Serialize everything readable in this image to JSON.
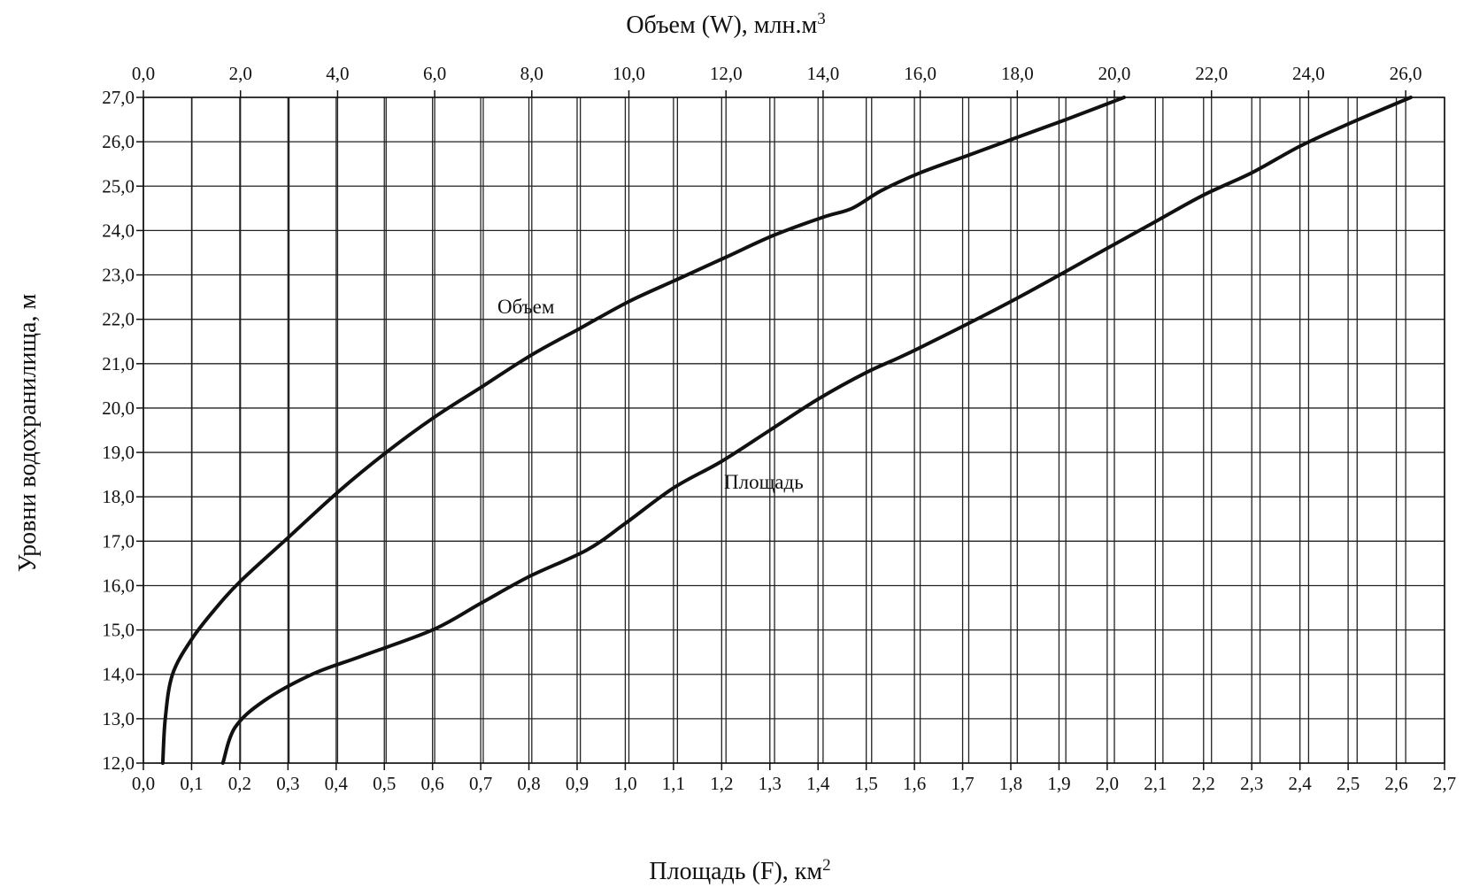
{
  "chart_data": {
    "type": "line",
    "title": "",
    "top_axis": {
      "label": "Объем (W), млн.м",
      "label_sup": "3",
      "range": [
        0,
        26.8
      ],
      "tick_values": [
        0,
        2,
        4,
        6,
        8,
        10,
        12,
        14,
        16,
        18,
        20,
        22,
        24,
        26
      ],
      "tick_labels": [
        "0,0",
        "2,0",
        "4,0",
        "6,0",
        "8,0",
        "10,0",
        "12,0",
        "14,0",
        "16,0",
        "18,0",
        "20,0",
        "22,0",
        "24,0",
        "26,0"
      ],
      "minor_step": 1
    },
    "bottom_axis": {
      "label": "Площадь (F), км",
      "label_sup": "2",
      "range": [
        0,
        2.7
      ],
      "tick_values": [
        0,
        0.1,
        0.2,
        0.3,
        0.4,
        0.5,
        0.6,
        0.7,
        0.8,
        0.9,
        1.0,
        1.1,
        1.2,
        1.3,
        1.4,
        1.5,
        1.6,
        1.7,
        1.8,
        1.9,
        2.0,
        2.1,
        2.2,
        2.3,
        2.4,
        2.5,
        2.6,
        2.7
      ],
      "tick_labels": [
        "0,0",
        "0,1",
        "0,2",
        "0,3",
        "0,4",
        "0,5",
        "0,6",
        "0,7",
        "0,8",
        "0,9",
        "1,0",
        "1,1",
        "1,2",
        "1,3",
        "1,4",
        "1,5",
        "1,6",
        "1,7",
        "1,8",
        "1,9",
        "2,0",
        "2,1",
        "2,2",
        "2,3",
        "2,4",
        "2,5",
        "2,6",
        "2,7"
      ]
    },
    "left_axis": {
      "label": "Уровни водохранилища, м",
      "range": [
        12,
        27
      ],
      "tick_values": [
        12,
        13,
        14,
        15,
        16,
        17,
        18,
        19,
        20,
        21,
        22,
        23,
        24,
        25,
        26,
        27
      ],
      "tick_labels": [
        "12,0",
        "13,0",
        "14,0",
        "15,0",
        "16,0",
        "17,0",
        "18,0",
        "19,0",
        "20,0",
        "21,0",
        "22,0",
        "23,0",
        "24,0",
        "25,0",
        "26,0",
        "27,0"
      ]
    },
    "grid": true,
    "series": [
      {
        "name": "Объем",
        "x_axis": "top",
        "color": "#111111",
        "points": [
          [
            0.4,
            12.0
          ],
          [
            0.45,
            13.0
          ],
          [
            0.6,
            14.0
          ],
          [
            1.0,
            14.8
          ],
          [
            1.5,
            15.5
          ],
          [
            2.0,
            16.1
          ],
          [
            3.0,
            17.1
          ],
          [
            4.0,
            18.1
          ],
          [
            5.0,
            19.0
          ],
          [
            6.0,
            19.8
          ],
          [
            7.0,
            20.5
          ],
          [
            8.0,
            21.2
          ],
          [
            9.0,
            21.8
          ],
          [
            10.0,
            22.4
          ],
          [
            11.0,
            22.9
          ],
          [
            12.0,
            23.4
          ],
          [
            13.0,
            23.9
          ],
          [
            14.0,
            24.3
          ],
          [
            14.6,
            24.5
          ],
          [
            15.2,
            24.9
          ],
          [
            16.0,
            25.3
          ],
          [
            17.0,
            25.7
          ],
          [
            18.0,
            26.1
          ],
          [
            19.0,
            26.5
          ],
          [
            20.2,
            27.0
          ]
        ]
      },
      {
        "name": "Площадь",
        "x_axis": "bottom",
        "color": "#111111",
        "points": [
          [
            0.165,
            12.0
          ],
          [
            0.19,
            12.8
          ],
          [
            0.25,
            13.4
          ],
          [
            0.35,
            14.0
          ],
          [
            0.45,
            14.4
          ],
          [
            0.6,
            15.0
          ],
          [
            0.7,
            15.6
          ],
          [
            0.8,
            16.2
          ],
          [
            0.92,
            16.8
          ],
          [
            1.0,
            17.4
          ],
          [
            1.1,
            18.2
          ],
          [
            1.2,
            18.8
          ],
          [
            1.3,
            19.5
          ],
          [
            1.4,
            20.2
          ],
          [
            1.5,
            20.8
          ],
          [
            1.6,
            21.3
          ],
          [
            1.8,
            22.4
          ],
          [
            2.0,
            23.6
          ],
          [
            2.1,
            24.2
          ],
          [
            2.2,
            24.8
          ],
          [
            2.3,
            25.3
          ],
          [
            2.4,
            25.9
          ],
          [
            2.5,
            26.4
          ],
          [
            2.63,
            27.0
          ]
        ]
      }
    ],
    "annotations": [
      "Объем",
      "Площадь"
    ]
  }
}
